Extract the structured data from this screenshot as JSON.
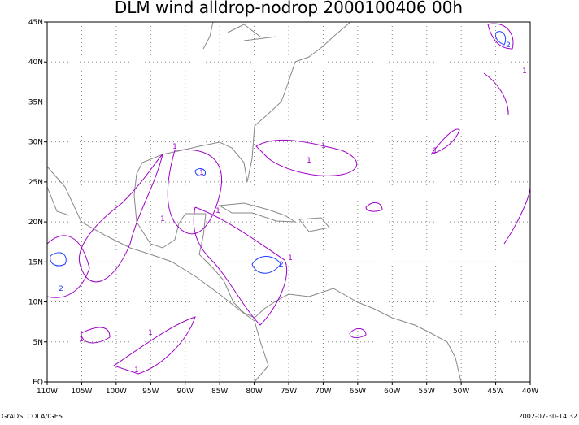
{
  "title": "DLM wind alldrop-nodrop 2000100406 00h",
  "map": {
    "lon_ticks": [
      "110W",
      "105W",
      "100W",
      "95W",
      "90W",
      "85W",
      "80W",
      "75W",
      "70W",
      "65W",
      "60W",
      "55W",
      "50W",
      "45W",
      "40W"
    ],
    "lat_ticks": [
      "EQ",
      "5N",
      "10N",
      "15N",
      "20N",
      "25N",
      "30N",
      "35N",
      "40N",
      "45N"
    ]
  },
  "contour_labels": [
    "1",
    "1",
    "1",
    "1",
    "1",
    "1",
    "1",
    "1",
    "1",
    "1",
    "1",
    "1",
    "1",
    "2",
    "2",
    "2"
  ],
  "footer": {
    "left": "GrADS: COLA/IGES",
    "right": "2002-07-30-14:32"
  }
}
